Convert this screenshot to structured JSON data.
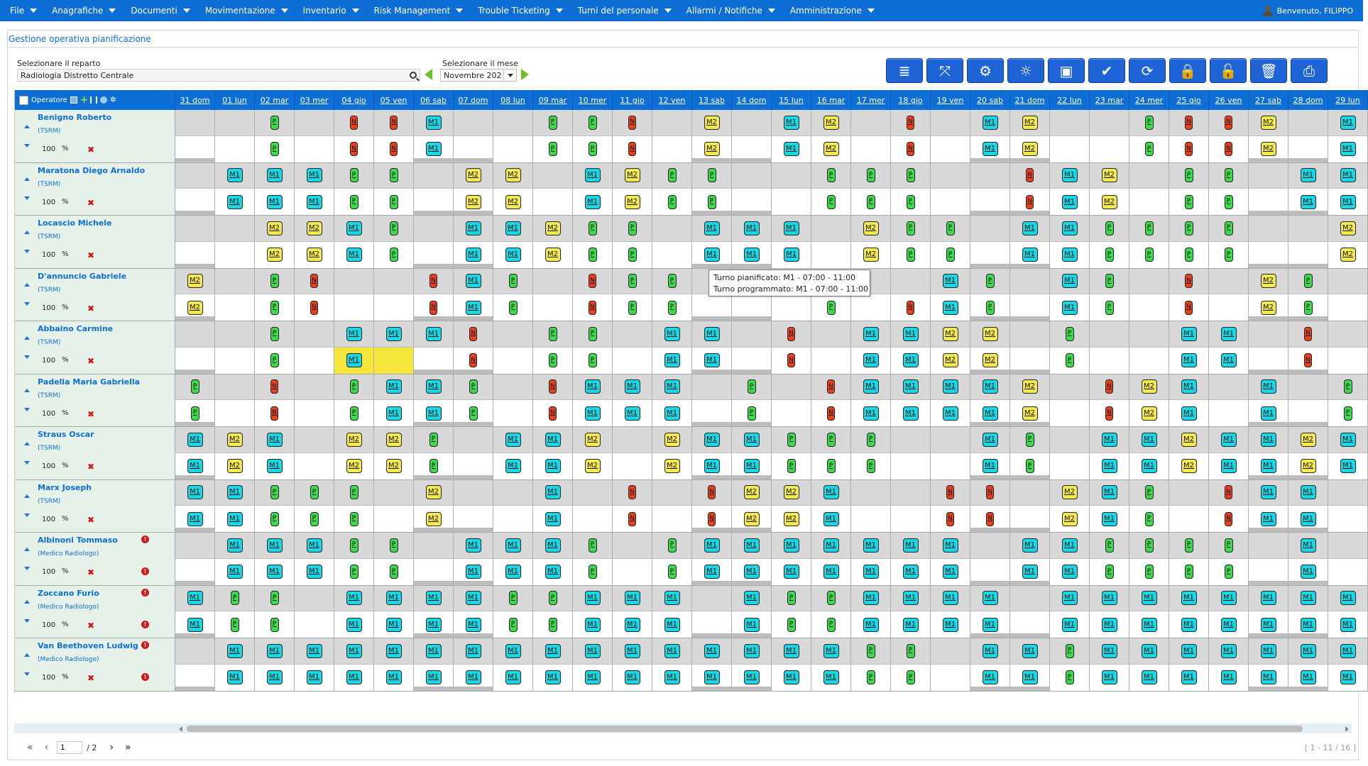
{
  "menu": [
    {
      "label": "File"
    },
    {
      "label": "Anagrafiche"
    },
    {
      "label": "Documenti"
    },
    {
      "label": "Movimentazione"
    },
    {
      "label": "Inventario"
    },
    {
      "label": "Risk Management"
    },
    {
      "label": "Trouble Ticketing"
    },
    {
      "label": "Turni del personale"
    },
    {
      "label": "Allarmi / Notifiche"
    },
    {
      "label": "Amministrazione"
    }
  ],
  "welcome": "Benvenuto, FILIPPO",
  "page_title": "Gestione operativa pianificazione",
  "department": {
    "label": "Selezionare il reparto",
    "value": "Radiologia Distretto Centrale"
  },
  "month": {
    "label": "Selezionare il mese",
    "value": "Novembre 202"
  },
  "toolbar": [
    {
      "name": "list-view-button",
      "icon": "≣"
    },
    {
      "name": "expand-button",
      "icon": "⤧"
    },
    {
      "name": "settings-button",
      "icon": "⚙"
    },
    {
      "name": "brain-button",
      "icon": "☼"
    },
    {
      "name": "save-button",
      "icon": "▣"
    },
    {
      "name": "confirm-button",
      "icon": "✔"
    },
    {
      "name": "refresh-button",
      "icon": "⟳"
    },
    {
      "name": "lock-button",
      "icon": "🔒"
    },
    {
      "name": "unlock-button",
      "icon": "🔓"
    },
    {
      "name": "delete-button",
      "icon": "🗑"
    },
    {
      "name": "print-button",
      "icon": "⎙"
    }
  ],
  "operator_header": "Operatore",
  "days": [
    "31 dom",
    "01 lun",
    "02 mar",
    "03 mer",
    "04 gio",
    "05 ven",
    "06 sab",
    "07 dom",
    "08 lun",
    "09 mar",
    "10 mer",
    "11 gio",
    "12 ven",
    "13 sab",
    "14 dom",
    "15 lun",
    "16 mar",
    "17 mer",
    "18 gio",
    "19 ven",
    "20 sab",
    "21 dom",
    "22 lun",
    "23 mar",
    "24 mer",
    "25 gio",
    "26 ven",
    "27 sab",
    "28 dom",
    "29 lun"
  ],
  "percent_sign": "%",
  "remove_glyph": "✖",
  "alert_glyph": "!",
  "operators": [
    {
      "name": "Benigno Roberto",
      "role": "(TSRM)",
      "pct": "100",
      "alert": false,
      "top": [
        "",
        "",
        "P",
        "",
        "N",
        "N",
        "M1",
        "",
        "",
        "P",
        "P",
        "N",
        "",
        "M2",
        "",
        "M1",
        "M2",
        "",
        "N",
        "",
        "M1",
        "M2",
        "",
        "",
        "P",
        "N",
        "N",
        "M2",
        "",
        "M1"
      ],
      "bot": [
        "",
        "",
        "P",
        "",
        "N",
        "N",
        "M1",
        "",
        "",
        "P",
        "P",
        "N",
        "",
        "M2",
        "",
        "M1",
        "M2",
        "",
        "N",
        "",
        "M1",
        "M2",
        "",
        "",
        "P",
        "N",
        "N",
        "M2",
        "",
        "M1"
      ]
    },
    {
      "name": "Maratona Diego Arnaldo",
      "role": "(TSRM)",
      "pct": "100",
      "alert": false,
      "top": [
        "",
        "M1",
        "M1",
        "M1",
        "P",
        "P",
        "",
        "M2",
        "M2",
        "",
        "M1",
        "M2",
        "P",
        "P",
        "",
        "",
        "P",
        "P",
        "P",
        "",
        "",
        "N",
        "M1",
        "M2",
        "",
        "P",
        "P",
        "",
        "M1",
        "M1"
      ],
      "bot": [
        "",
        "M1",
        "M1",
        "M1",
        "P",
        "P",
        "",
        "M2",
        "M2",
        "",
        "M1",
        "M2",
        "P",
        "P",
        "",
        "",
        "P",
        "P",
        "P",
        "",
        "",
        "N",
        "M1",
        "M2",
        "",
        "P",
        "P",
        "",
        "M1",
        "M1"
      ]
    },
    {
      "name": "Locascio Michele",
      "role": "(TSRM)",
      "pct": "100",
      "alert": false,
      "top": [
        "",
        "",
        "M2",
        "M2",
        "M1",
        "P",
        "",
        "M1",
        "M1",
        "M2",
        "P",
        "P",
        "",
        "M1",
        "M1",
        "M1",
        "",
        "M2",
        "P",
        "P",
        "",
        "M1",
        "M1",
        "P",
        "P",
        "P",
        "P",
        "",
        "",
        "M2"
      ],
      "bot": [
        "",
        "",
        "M2",
        "M2",
        "M1",
        "P",
        "",
        "M1",
        "M1",
        "M2",
        "P",
        "P",
        "",
        "M1",
        "M1",
        "M1",
        "",
        "M2",
        "P",
        "P",
        "",
        "M1",
        "M1",
        "P",
        "P",
        "P",
        "P",
        "",
        "",
        "M2"
      ]
    },
    {
      "name": "D'annuncio Gabriele",
      "role": "(TSRM)",
      "pct": "100",
      "alert": false,
      "top": [
        "M2",
        "",
        "P",
        "N",
        "",
        "",
        "N",
        "M1",
        "P",
        "",
        "N",
        "P",
        "P",
        "",
        "",
        "",
        "",
        "",
        "",
        "M1",
        "P",
        "",
        "M1",
        "P",
        "",
        "N",
        "",
        "M2",
        "P",
        ""
      ],
      "bot": [
        "M2",
        "",
        "P",
        "N",
        "",
        "",
        "N",
        "M1",
        "P",
        "",
        "N",
        "P",
        "P",
        "",
        "",
        "",
        "P",
        "",
        "N",
        "M1",
        "P",
        "",
        "M1",
        "P",
        "",
        "N",
        "",
        "M2",
        "P",
        ""
      ]
    },
    {
      "name": "Abbaino Carmine",
      "role": "(TSRM)",
      "pct": "100",
      "alert": false,
      "top": [
        "",
        "",
        "P",
        "",
        "M1",
        "M1",
        "M1",
        "N",
        "",
        "P",
        "P",
        "",
        "M1",
        "M1",
        "",
        "N",
        "",
        "M1",
        "M1",
        "M2",
        "M2",
        "",
        "P",
        "",
        "",
        "M1",
        "M1",
        "",
        "N",
        ""
      ],
      "bot": [
        "",
        "",
        "P",
        "",
        "M1",
        "",
        "",
        "N",
        "",
        "P",
        "P",
        "",
        "M1",
        "M1",
        "",
        "N",
        "",
        "M1",
        "M1",
        "M2",
        "M2",
        "",
        "P",
        "",
        "",
        "M1",
        "M1",
        "",
        "N",
        ""
      ],
      "highlight": [
        4,
        5
      ]
    },
    {
      "name": "Padella Maria Gabriella",
      "role": "(TSRM)",
      "pct": "100",
      "alert": false,
      "top": [
        "P",
        "",
        "N",
        "",
        "P",
        "M1",
        "M1",
        "P",
        "",
        "N",
        "M1",
        "M1",
        "M1",
        "",
        "P",
        "",
        "N",
        "M1",
        "M1",
        "M1",
        "M1",
        "M2",
        "",
        "N",
        "M2",
        "M1",
        "",
        "M1",
        "",
        "P"
      ],
      "bot": [
        "P",
        "",
        "N",
        "",
        "P",
        "M1",
        "M1",
        "P",
        "",
        "N",
        "M1",
        "M1",
        "M1",
        "",
        "P",
        "",
        "N",
        "M1",
        "M1",
        "M1",
        "M1",
        "M2",
        "",
        "N",
        "M2",
        "M1",
        "",
        "M1",
        "",
        "P"
      ]
    },
    {
      "name": "Straus Oscar",
      "role": "(TSRM)",
      "pct": "100",
      "alert": false,
      "top": [
        "M1",
        "M2",
        "M1",
        "",
        "M2",
        "M2",
        "P",
        "",
        "M1",
        "M1",
        "M2",
        "",
        "M2",
        "M1",
        "M1",
        "P",
        "P",
        "P",
        "",
        "",
        "M1",
        "P",
        "",
        "M1",
        "M1",
        "M2",
        "M1",
        "M1",
        "M2",
        "M1"
      ],
      "bot": [
        "M1",
        "M2",
        "M1",
        "",
        "M2",
        "M2",
        "P",
        "",
        "M1",
        "M1",
        "M2",
        "",
        "M2",
        "M1",
        "M1",
        "P",
        "P",
        "P",
        "",
        "",
        "M1",
        "P",
        "",
        "M1",
        "M1",
        "M2",
        "M1",
        "M1",
        "M2",
        "M1"
      ]
    },
    {
      "name": "Marx Joseph",
      "role": "(TSRM)",
      "pct": "100",
      "alert": false,
      "top": [
        "M1",
        "M1",
        "P",
        "P",
        "P",
        "",
        "M2",
        "",
        "",
        "M1",
        "",
        "N",
        "",
        "N",
        "M2",
        "M2",
        "M1",
        "",
        "",
        "N",
        "N",
        "",
        "M2",
        "M1",
        "P",
        "",
        "N",
        "M1",
        "M1",
        ""
      ],
      "bot": [
        "M1",
        "M1",
        "P",
        "P",
        "P",
        "",
        "M2",
        "",
        "",
        "M1",
        "",
        "N",
        "",
        "N",
        "M2",
        "M2",
        "M1",
        "",
        "",
        "N",
        "N",
        "",
        "M2",
        "M1",
        "P",
        "",
        "N",
        "M1",
        "M1",
        ""
      ]
    },
    {
      "name": "Albinoni Tommaso",
      "role": "(Medico Radiologo)",
      "pct": "100",
      "alert": true,
      "top": [
        "",
        "M1",
        "M1",
        "M1",
        "P",
        "P",
        "",
        "M1",
        "M1",
        "M1",
        "P",
        "",
        "P",
        "M1",
        "M1",
        "M1",
        "M1",
        "M1",
        "M1",
        "M1",
        "",
        "M1",
        "M1",
        "P",
        "P",
        "P",
        "P",
        "",
        "M1",
        ""
      ],
      "bot": [
        "",
        "M1",
        "M1",
        "M1",
        "P",
        "P",
        "",
        "M1",
        "M1",
        "M1",
        "P",
        "",
        "P",
        "M1",
        "M1",
        "M1",
        "M1",
        "M1",
        "M1",
        "M1",
        "",
        "M1",
        "M1",
        "P",
        "P",
        "P",
        "P",
        "",
        "M1",
        ""
      ]
    },
    {
      "name": "Zoccano Furio",
      "role": "(Medico Radiologo)",
      "pct": "100",
      "alert": true,
      "top": [
        "M1",
        "P",
        "P",
        "",
        "M1",
        "M1",
        "M1",
        "M1",
        "P",
        "P",
        "M1",
        "M1",
        "M1",
        "",
        "M1",
        "P",
        "P",
        "M1",
        "M1",
        "M1",
        "M1",
        "",
        "M1",
        "M1",
        "M1",
        "M1",
        "M1",
        "M1",
        "M1",
        "M1"
      ],
      "bot": [
        "M1",
        "P",
        "P",
        "",
        "M1",
        "M1",
        "M1",
        "M1",
        "P",
        "P",
        "M1",
        "M1",
        "M1",
        "",
        "M1",
        "P",
        "P",
        "M1",
        "M1",
        "M1",
        "M1",
        "",
        "M1",
        "M1",
        "M1",
        "M1",
        "M1",
        "M1",
        "M1",
        "M1"
      ]
    },
    {
      "name": "Van Beethoven Ludwig",
      "role": "(Medico Radiologo)",
      "pct": "100",
      "alert": true,
      "top": [
        "",
        "M1",
        "M1",
        "M1",
        "M1",
        "M1",
        "M1",
        "M1",
        "M1",
        "M1",
        "M1",
        "M1",
        "M1",
        "M1",
        "M1",
        "M1",
        "M1",
        "P",
        "P",
        "",
        "M1",
        "M1",
        "P",
        "M1",
        "M1",
        "M1",
        "M1",
        "M1",
        "M1",
        "M1"
      ],
      "bot": [
        "",
        "M1",
        "M1",
        "M1",
        "M1",
        "M1",
        "M1",
        "M1",
        "M1",
        "M1",
        "M1",
        "M1",
        "M1",
        "M1",
        "M1",
        "M1",
        "M1",
        "P",
        "P",
        "",
        "M1",
        "M1",
        "P",
        "M1",
        "M1",
        "M1",
        "M1",
        "M1",
        "M1",
        "M1"
      ]
    }
  ],
  "tooltip": {
    "line1": "Turno pianificato: M1 - 07:00 - 11:00",
    "line2": "Turno programmato: M1 - 07:00 - 11:00"
  },
  "pager": {
    "page": "1",
    "total": "/ 2",
    "range": "[ 1 - 11 / 16 ]"
  },
  "colors": {
    "menu": "#0d6fd6",
    "M1": "#17d9e6",
    "M2": "#f4ea4c",
    "P": "#3fd94d",
    "N": "#e8401c",
    "highlight": "#f6e53a"
  }
}
